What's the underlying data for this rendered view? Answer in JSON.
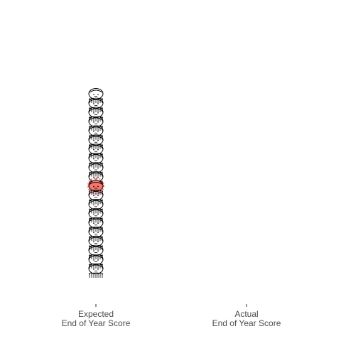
{
  "chart_data": {
    "type": "scatter",
    "categories": [
      "Expected\nEnd of Year Score",
      "Actual\nEnd of Year Score"
    ],
    "series": [
      {
        "category_index": 0,
        "points": [
          {
            "y": 1,
            "highlight": false
          },
          {
            "y": 2,
            "highlight": false
          },
          {
            "y": 3,
            "highlight": false
          },
          {
            "y": 4,
            "highlight": false
          },
          {
            "y": 5,
            "highlight": false
          },
          {
            "y": 6,
            "highlight": false
          },
          {
            "y": 7,
            "highlight": false
          },
          {
            "y": 8,
            "highlight": false
          },
          {
            "y": 9,
            "highlight": false
          },
          {
            "y": 10,
            "highlight": true
          },
          {
            "y": 11,
            "highlight": false
          },
          {
            "y": 12,
            "highlight": false
          },
          {
            "y": 13,
            "highlight": false
          },
          {
            "y": 14,
            "highlight": false
          },
          {
            "y": 15,
            "highlight": false
          },
          {
            "y": 16,
            "highlight": false
          },
          {
            "y": 17,
            "highlight": false
          },
          {
            "y": 18,
            "highlight": false
          },
          {
            "y": 19,
            "highlight": false
          },
          {
            "y": 20,
            "highlight": false
          }
        ]
      },
      {
        "category_index": 1,
        "points": []
      }
    ],
    "ylim": [
      -3,
      24
    ],
    "grid": false,
    "colors": {
      "marker_stroke": "#000000",
      "marker_fill": "#ffffff",
      "highlight": "#f8766d",
      "tick_label": "#4d4d4d",
      "tick": "#333333"
    },
    "marker_icon": "child-face-icon"
  }
}
